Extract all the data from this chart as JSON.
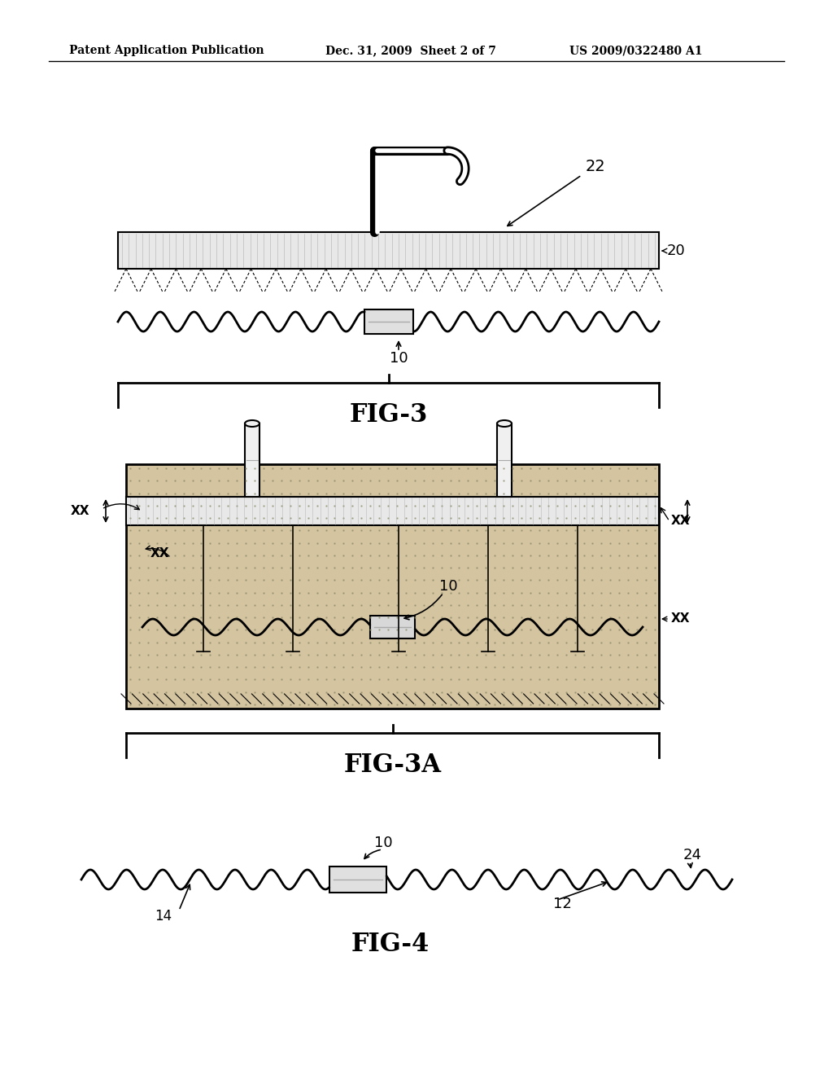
{
  "bg_color": "#ffffff",
  "header_left": "Patent Application Publication",
  "header_mid": "Dec. 31, 2009  Sheet 2 of 7",
  "header_right": "US 2009/0322480 A1",
  "fig3_label": "FIG-3",
  "fig3a_label": "FIG-3A",
  "fig4_label": "FIG-4",
  "label_10": "10",
  "label_12": "12",
  "label_14": "14",
  "label_20": "20",
  "label_22": "22",
  "label_24": "24",
  "label_xx": "XX"
}
